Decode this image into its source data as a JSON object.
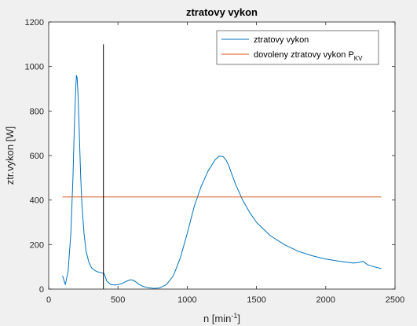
{
  "chart_data": {
    "type": "line",
    "title": "ztratovy vykon",
    "xlabel": "n [min",
    "xlabel_sup": "-1",
    "xlabel_suffix": "]",
    "ylabel": "ztr.vykon [W]",
    "xlim": [
      0,
      2500
    ],
    "ylim": [
      0,
      1200
    ],
    "xticks": [
      0,
      500,
      1000,
      1500,
      2000,
      2500
    ],
    "yticks": [
      0,
      200,
      400,
      600,
      800,
      1000,
      1200
    ],
    "grid": false,
    "legend_position": "top-right",
    "series": [
      {
        "name": "ztratovy vykon",
        "color": "#0072bd",
        "x": [
          100,
          120,
          140,
          160,
          175,
          185,
          195,
          200,
          205,
          212,
          220,
          230,
          240,
          255,
          270,
          290,
          310,
          330,
          350,
          370,
          390,
          400,
          420,
          450,
          480,
          500,
          530,
          560,
          590,
          610,
          630,
          650,
          680,
          720,
          760,
          800,
          850,
          900,
          950,
          1000,
          1050,
          1100,
          1150,
          1200,
          1230,
          1260,
          1280,
          1300,
          1320,
          1350,
          1400,
          1450,
          1500,
          1600,
          1700,
          1800,
          1900,
          2000,
          2100,
          2200,
          2240,
          2270,
          2300,
          2350,
          2400
        ],
        "y": [
          60,
          20,
          80,
          250,
          500,
          720,
          900,
          960,
          950,
          870,
          720,
          520,
          380,
          250,
          170,
          120,
          95,
          85,
          78,
          75,
          72,
          70,
          35,
          20,
          18,
          20,
          25,
          35,
          42,
          40,
          32,
          22,
          12,
          6,
          3,
          5,
          20,
          60,
          140,
          250,
          370,
          460,
          530,
          580,
          597,
          595,
          580,
          555,
          520,
          470,
          400,
          345,
          300,
          240,
          200,
          170,
          150,
          135,
          125,
          117,
          120,
          125,
          110,
          100,
          92
        ]
      },
      {
        "name": "dovoleny ztratovy vykon P",
        "name_sub": "KV",
        "color": "#d95319",
        "x": [
          100,
          2400
        ],
        "y": [
          414,
          414
        ]
      }
    ],
    "annotations": [
      {
        "type": "vertical-line",
        "x": 395,
        "y": [
          0,
          1100
        ],
        "color": "#000000"
      }
    ]
  }
}
